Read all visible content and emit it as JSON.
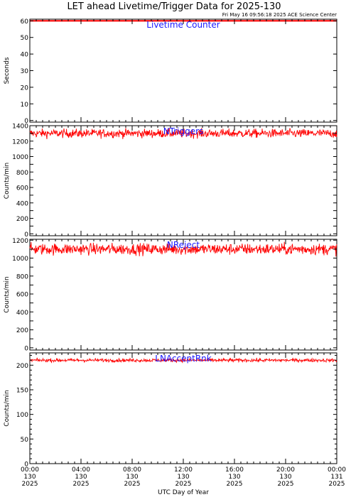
{
  "title": "LET ahead Livetime/Trigger Data for 2025-130",
  "subtitle": "Fri May 16 09:56:18 2025 ACE Science Center",
  "xlabel": "UTC Day of Year",
  "colors": {
    "data": "#ff0000",
    "axes": "#000000",
    "panel_label": "#1a1aff",
    "background": "#ffffff"
  },
  "chart_data": [
    {
      "type": "line",
      "panel_label": "Livetime Counter",
      "ylabel": "Seconds",
      "ylim": [
        -1,
        61
      ],
      "yticks": [
        0,
        10,
        20,
        30,
        40,
        50,
        60
      ],
      "series": [
        {
          "x_range": [
            "130 00:00",
            "131 00:00"
          ],
          "baseline": 60,
          "noise": 0
        }
      ]
    },
    {
      "type": "line",
      "panel_label": "NTriggers",
      "ylabel": "Counts/min",
      "ylim": [
        -25,
        1400
      ],
      "yticks": [
        0,
        100,
        200,
        300,
        400,
        500,
        600,
        700,
        800,
        900,
        1000,
        1100,
        1200,
        1300,
        1400
      ],
      "ytick_labels": [
        "0",
        "",
        "200",
        "",
        "400",
        "",
        "600",
        "",
        "800",
        "",
        "1000",
        "",
        "1200",
        "",
        "1400"
      ],
      "series": [
        {
          "x_range": [
            "130 00:00",
            "131 00:00"
          ],
          "baseline": 1300,
          "noise": 40
        }
      ]
    },
    {
      "type": "line",
      "panel_label": "NReject",
      "ylabel": "Counts/min",
      "ylim": [
        -25,
        1210
      ],
      "yticks": [
        0,
        100,
        200,
        300,
        400,
        500,
        600,
        700,
        800,
        900,
        1000,
        1100,
        1200
      ],
      "ytick_labels": [
        "0",
        "",
        "200",
        "",
        "400",
        "",
        "600",
        "",
        "800",
        "",
        "1000",
        "",
        "1200"
      ],
      "series": [
        {
          "x_range": [
            "130 00:00",
            "131 00:00"
          ],
          "baseline": 1100,
          "noise": 45
        }
      ]
    },
    {
      "type": "line",
      "panel_label": "LNAcceptRnk",
      "ylabel": "Counts/min",
      "ylim": [
        0,
        225
      ],
      "yticks": [
        0,
        50,
        100,
        150,
        200
      ],
      "minor_yticks": [
        10,
        20,
        30,
        40,
        60,
        70,
        80,
        90,
        110,
        120,
        130,
        140,
        160,
        170,
        180,
        190,
        210,
        220
      ],
      "series": [
        {
          "x_range": [
            "130 00:00",
            "131 00:00"
          ],
          "baseline": 210,
          "noise": 2.5
        }
      ]
    }
  ],
  "x_axis": {
    "range_hours": [
      0,
      24
    ],
    "tick_hours": [
      0,
      4,
      8,
      12,
      16,
      20,
      24
    ],
    "tick_labels": [
      [
        "00:00",
        "130",
        "2025"
      ],
      [
        "04:00",
        "130",
        "2025"
      ],
      [
        "08:00",
        "130",
        "2025"
      ],
      [
        "12:00",
        "130",
        "2025"
      ],
      [
        "16:00",
        "130",
        "2025"
      ],
      [
        "20:00",
        "130",
        "2025"
      ],
      [
        "00:00",
        "131",
        "2025"
      ]
    ]
  }
}
